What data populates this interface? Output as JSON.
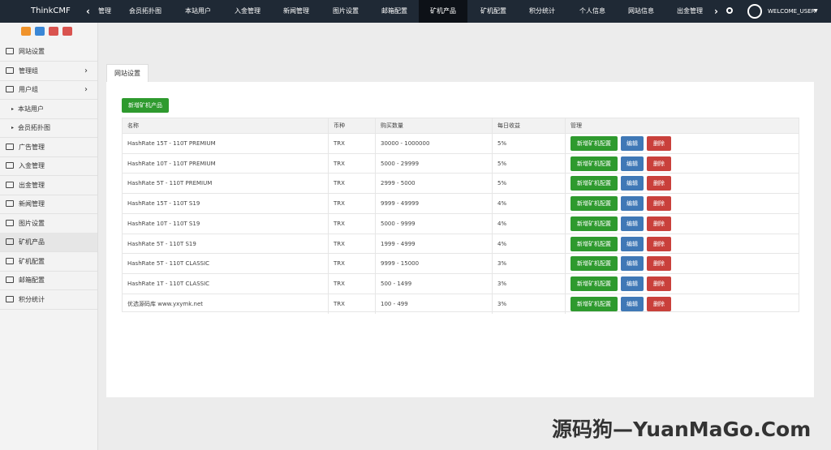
{
  "brand": "ThinkCMF",
  "top_tabs": [
    "管理",
    "会员拓扑图",
    "本站用户",
    "入金管理",
    "新闻管理",
    "图片设置",
    "邮箱配置",
    "矿机产品",
    "矿机配置",
    "积分统计",
    "个人信息",
    "网站信息",
    "出金管理"
  ],
  "user": "WELCOME_USER",
  "sidebar": [
    "网站设置",
    "管理组",
    "用户组",
    "本站用户",
    "会员拓扑图",
    "广告管理",
    "入金管理",
    "出金管理",
    "新闻管理",
    "图片设置",
    "矿机产品",
    "矿机配置",
    "邮箱配置",
    "积分统计"
  ],
  "page_tab": "网站设置",
  "add_button": "新增矿机产品",
  "table": {
    "headers": [
      "名称",
      "币种",
      "购买数量",
      "每日收益",
      "管理"
    ],
    "rows": [
      [
        "HashRate 15T - 110T PREMIUM",
        "TRX",
        "30000 - 1000000",
        "5%"
      ],
      [
        "HashRate 10T - 110T PREMIUM",
        "TRX",
        "5000 - 29999",
        "5%"
      ],
      [
        "HashRate 5T - 110T PREMIUM",
        "TRX",
        "2999 - 5000",
        "5%"
      ],
      [
        "HashRate 15T - 110T S19",
        "TRX",
        "9999 - 49999",
        "4%"
      ],
      [
        "HashRate 10T - 110T S19",
        "TRX",
        "5000 - 9999",
        "4%"
      ],
      [
        "HashRate 5T - 110T S19",
        "TRX",
        "1999 - 4999",
        "4%"
      ],
      [
        "HashRate 5T - 110T CLASSIC",
        "TRX",
        "9999 - 15000",
        "3%"
      ],
      [
        "HashRate 1T - 110T CLASSIC",
        "TRX",
        "500 - 1499",
        "3%"
      ],
      [
        "优选源码库 www.yxymk.net",
        "TRX",
        "100 - 499",
        "3%"
      ]
    ],
    "actions": [
      "新增矿机配置",
      "编辑",
      "删除"
    ]
  },
  "watermark": "源码狗—YuanMaGo.Com"
}
